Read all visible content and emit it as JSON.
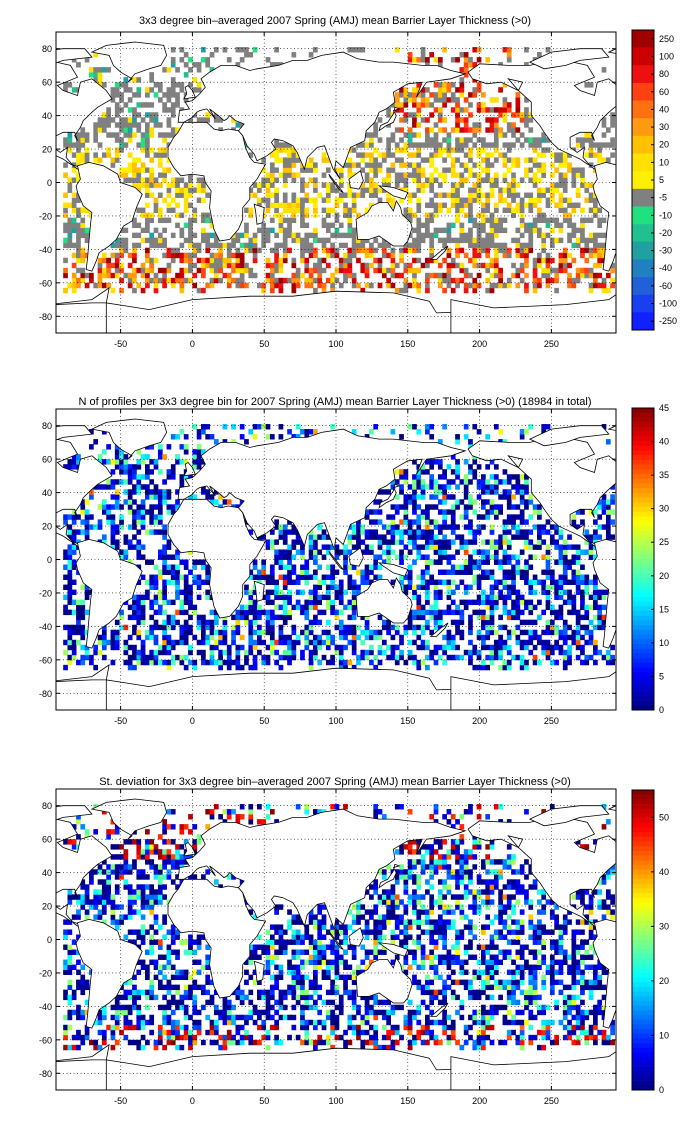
{
  "chart_data": [
    {
      "type": "heatmap",
      "title": "3x3 degree bin–averaged 2007 Spring (AMJ) mean Barrier Layer Thickness (>0)",
      "xlabel": "",
      "ylabel": "",
      "xlim": [
        -95,
        295
      ],
      "ylim": [
        -90,
        90
      ],
      "xticks": [
        "-50",
        "0",
        "50",
        "100",
        "150",
        "200",
        "250"
      ],
      "yticks": [
        "80",
        "60",
        "40",
        "20",
        "0",
        "-20",
        "-40",
        "-60",
        "-80"
      ],
      "grid": true,
      "colorbar": {
        "kind": "categorical",
        "labels": [
          "250",
          "100",
          "80",
          "60",
          "40",
          "30",
          "20",
          "10",
          "5",
          "-5",
          "-10",
          "-20",
          "-30",
          "-40",
          "-60",
          "-100",
          "-250"
        ],
        "colors": [
          "#a00000",
          "#cc0000",
          "#ee1010",
          "#ff4010",
          "#ff7010",
          "#ff9a10",
          "#ffc000",
          "#ffe000",
          "#fff000",
          "#808080",
          "#20e080",
          "#20c090",
          "#20a0a0",
          "#2080c0",
          "#2060d8",
          "#1840f0",
          "#1020ff"
        ]
      }
    },
    {
      "type": "heatmap",
      "title": "N of profiles per 3x3 degree bin for 2007 Spring (AMJ) mean Barrier Layer Thickness (>0) (18984 in total)",
      "xlabel": "",
      "ylabel": "",
      "xlim": [
        -95,
        295
      ],
      "ylim": [
        -90,
        90
      ],
      "xticks": [
        "-50",
        "0",
        "50",
        "100",
        "150",
        "200",
        "250"
      ],
      "yticks": [
        "80",
        "60",
        "40",
        "20",
        "0",
        "-20",
        "-40",
        "-60",
        "-80"
      ],
      "grid": true,
      "colorbar": {
        "kind": "continuous",
        "colormap": "jet",
        "range": [
          0,
          45
        ],
        "ticks": [
          "45",
          "40",
          "35",
          "30",
          "25",
          "20",
          "15",
          "10",
          "5",
          "0"
        ]
      }
    },
    {
      "type": "heatmap",
      "title": "St. deviation for 3x3 degree bin–averaged 2007 Spring (AMJ) mean Barrier Layer Thickness (>0)",
      "xlabel": "",
      "ylabel": "",
      "xlim": [
        -95,
        295
      ],
      "ylim": [
        -90,
        90
      ],
      "xticks": [
        "-50",
        "0",
        "50",
        "100",
        "150",
        "200",
        "250"
      ],
      "yticks": [
        "80",
        "60",
        "40",
        "20",
        "0",
        "-20",
        "-40",
        "-60",
        "-80"
      ],
      "grid": true,
      "colorbar": {
        "kind": "continuous",
        "colormap": "jet",
        "range": [
          0,
          55
        ],
        "ticks": [
          "50",
          "40",
          "30",
          "20",
          "10",
          "0"
        ]
      }
    }
  ]
}
